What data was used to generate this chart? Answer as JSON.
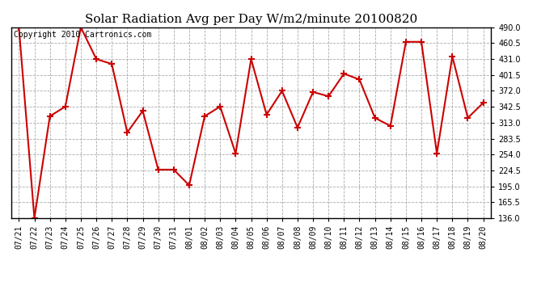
{
  "title": "Solar Radiation Avg per Day W/m2/minute 20100820",
  "copyright_text": "Copyright 2010 Cartronics.com",
  "labels": [
    "07/21",
    "07/22",
    "07/23",
    "07/24",
    "07/25",
    "07/26",
    "07/27",
    "07/28",
    "07/29",
    "07/30",
    "07/31",
    "08/01",
    "08/02",
    "08/03",
    "08/04",
    "08/05",
    "08/06",
    "08/07",
    "08/08",
    "08/09",
    "08/10",
    "08/11",
    "08/12",
    "08/13",
    "08/14",
    "08/15",
    "08/16",
    "08/17",
    "08/18",
    "08/19",
    "08/20"
  ],
  "values": [
    490.0,
    136.0,
    325.0,
    343.0,
    490.0,
    431.0,
    422.0,
    295.0,
    335.0,
    226.0,
    226.0,
    197.0,
    325.0,
    343.0,
    256.0,
    431.0,
    328.0,
    372.0,
    304.0,
    370.0,
    362.0,
    404.0,
    393.0,
    322.0,
    307.0,
    463.0,
    463.0,
    256.0,
    436.0,
    322.0,
    350.0
  ],
  "ylim_min": 136.0,
  "ylim_max": 490.0,
  "yticks": [
    136.0,
    165.5,
    195.0,
    224.5,
    254.0,
    283.5,
    313.0,
    342.5,
    372.0,
    401.5,
    431.0,
    460.5,
    490.0
  ],
  "line_color": "#cc0000",
  "marker": "+",
  "marker_size": 6,
  "marker_edge_width": 1.5,
  "line_width": 1.5,
  "bg_color": "#ffffff",
  "grid_color": "#aaaaaa",
  "title_fontsize": 11,
  "tick_fontsize": 7,
  "copyright_fontsize": 7,
  "fig_width": 6.9,
  "fig_height": 3.75,
  "dpi": 100
}
